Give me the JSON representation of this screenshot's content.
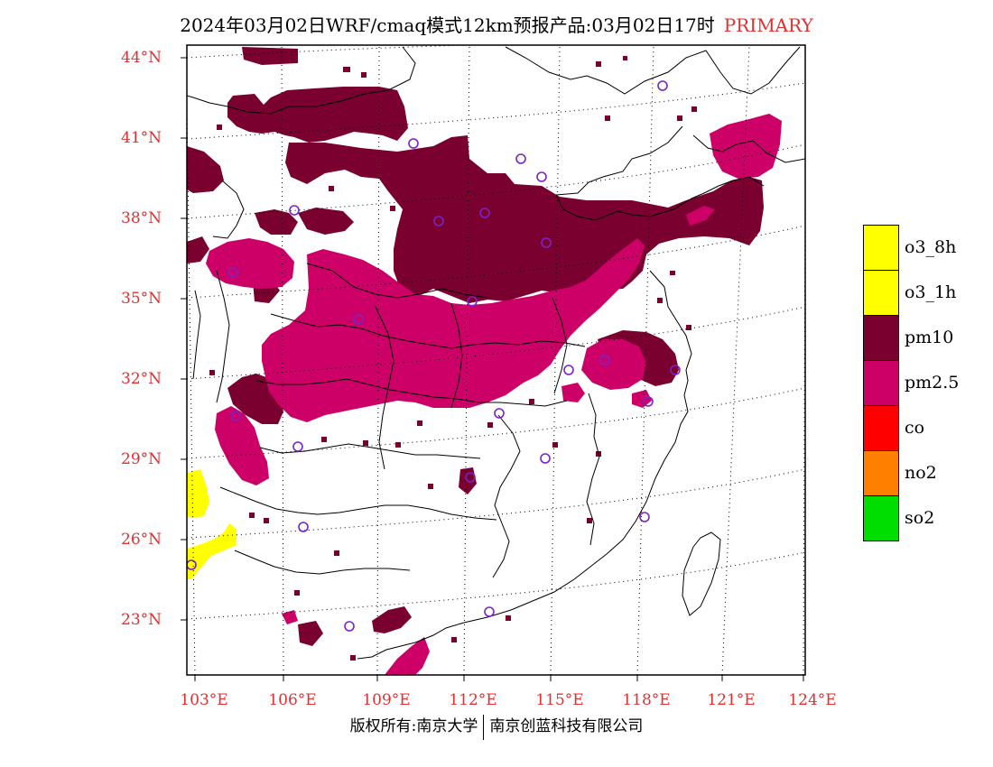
{
  "header": {
    "title": "2024年03月02日WRF/cmaq模式12km预报产品:03月02日17时",
    "tag": "PRIMARY",
    "tag_color": "#e03030"
  },
  "map": {
    "lat_labels": [
      "44°N",
      "41°N",
      "38°N",
      "35°N",
      "32°N",
      "29°N",
      "26°N",
      "23°N"
    ],
    "lon_labels": [
      "103°E",
      "106°E",
      "109°E",
      "112°E",
      "115°E",
      "118°E",
      "121°E",
      "124°E"
    ]
  },
  "legend": {
    "items": [
      {
        "label": "o3_8h",
        "color": "#ffff00"
      },
      {
        "label": "o3_1h",
        "color": "#ffff00"
      },
      {
        "label": "pm10",
        "color": "#7a0030"
      },
      {
        "label": "pm2.5",
        "color": "#cc0066"
      },
      {
        "label": "co",
        "color": "#ff0000"
      },
      {
        "label": "no2",
        "color": "#ff8000"
      },
      {
        "label": "so2",
        "color": "#00dd00"
      }
    ]
  },
  "footer": {
    "credit_left": "版权所有:南京大学",
    "credit_right": "南京创蓝科技有限公司"
  }
}
